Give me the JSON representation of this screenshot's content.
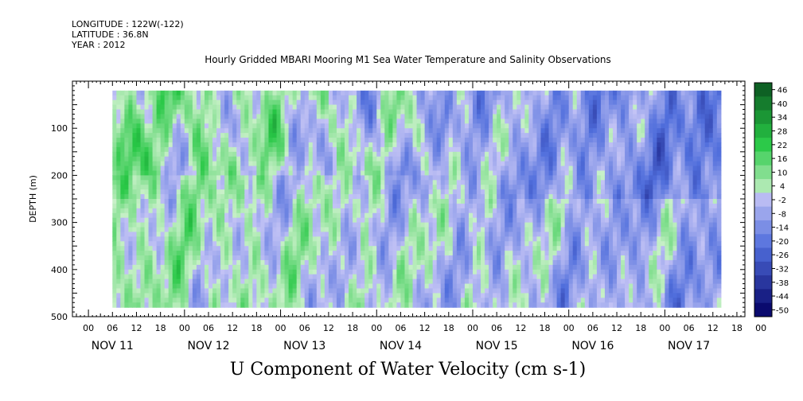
{
  "meta": {
    "longitude": "LONGITUDE : 122W(-122)",
    "latitude": "LATITUDE : 36.8N",
    "year": "YEAR : 2012"
  },
  "chart_data": {
    "type": "heatmap",
    "title": "Hourly Gridded MBARI Mooring M1 Sea Water Temperature and Salinity Observations",
    "variable_title": "U Component of Water Velocity (cm s-1)",
    "ylabel": "DEPTH (m)",
    "xlabel": "",
    "ylim": [
      500,
      0
    ],
    "y_ticks": [
      100,
      200,
      300,
      400,
      500
    ],
    "x_hour_ticks": [
      "00",
      "06",
      "12",
      "18",
      "00",
      "06",
      "12",
      "18",
      "00",
      "06",
      "12",
      "18",
      "00",
      "06",
      "12",
      "18",
      "00",
      "06",
      "12",
      "18",
      "00",
      "06",
      "12",
      "18",
      "00",
      "06",
      "12",
      "18",
      "00"
    ],
    "x_day_labels": [
      "NOV 11",
      "NOV 12",
      "NOV 13",
      "NOV 14",
      "NOV 15",
      "NOV 16",
      "NOV 17"
    ],
    "x_range_hours": [
      -4,
      164
    ],
    "data_range_hours": [
      6,
      158
    ],
    "data_depth_range": [
      20,
      480
    ],
    "colorbar": {
      "labels": [
        "46",
        "40",
        "34",
        "28",
        "22",
        "16",
        "10",
        "4",
        "-2",
        "-8",
        "-14",
        "-20",
        "-26",
        "-32",
        "-38",
        "-44",
        "-50"
      ],
      "min": -50,
      "max": 50
    },
    "pattern_note": "positive (green) flow dominates upper 250 m on Nov 11-14; negative (blue) dominates Nov 15-17",
    "zero_color": "#ffffff"
  }
}
